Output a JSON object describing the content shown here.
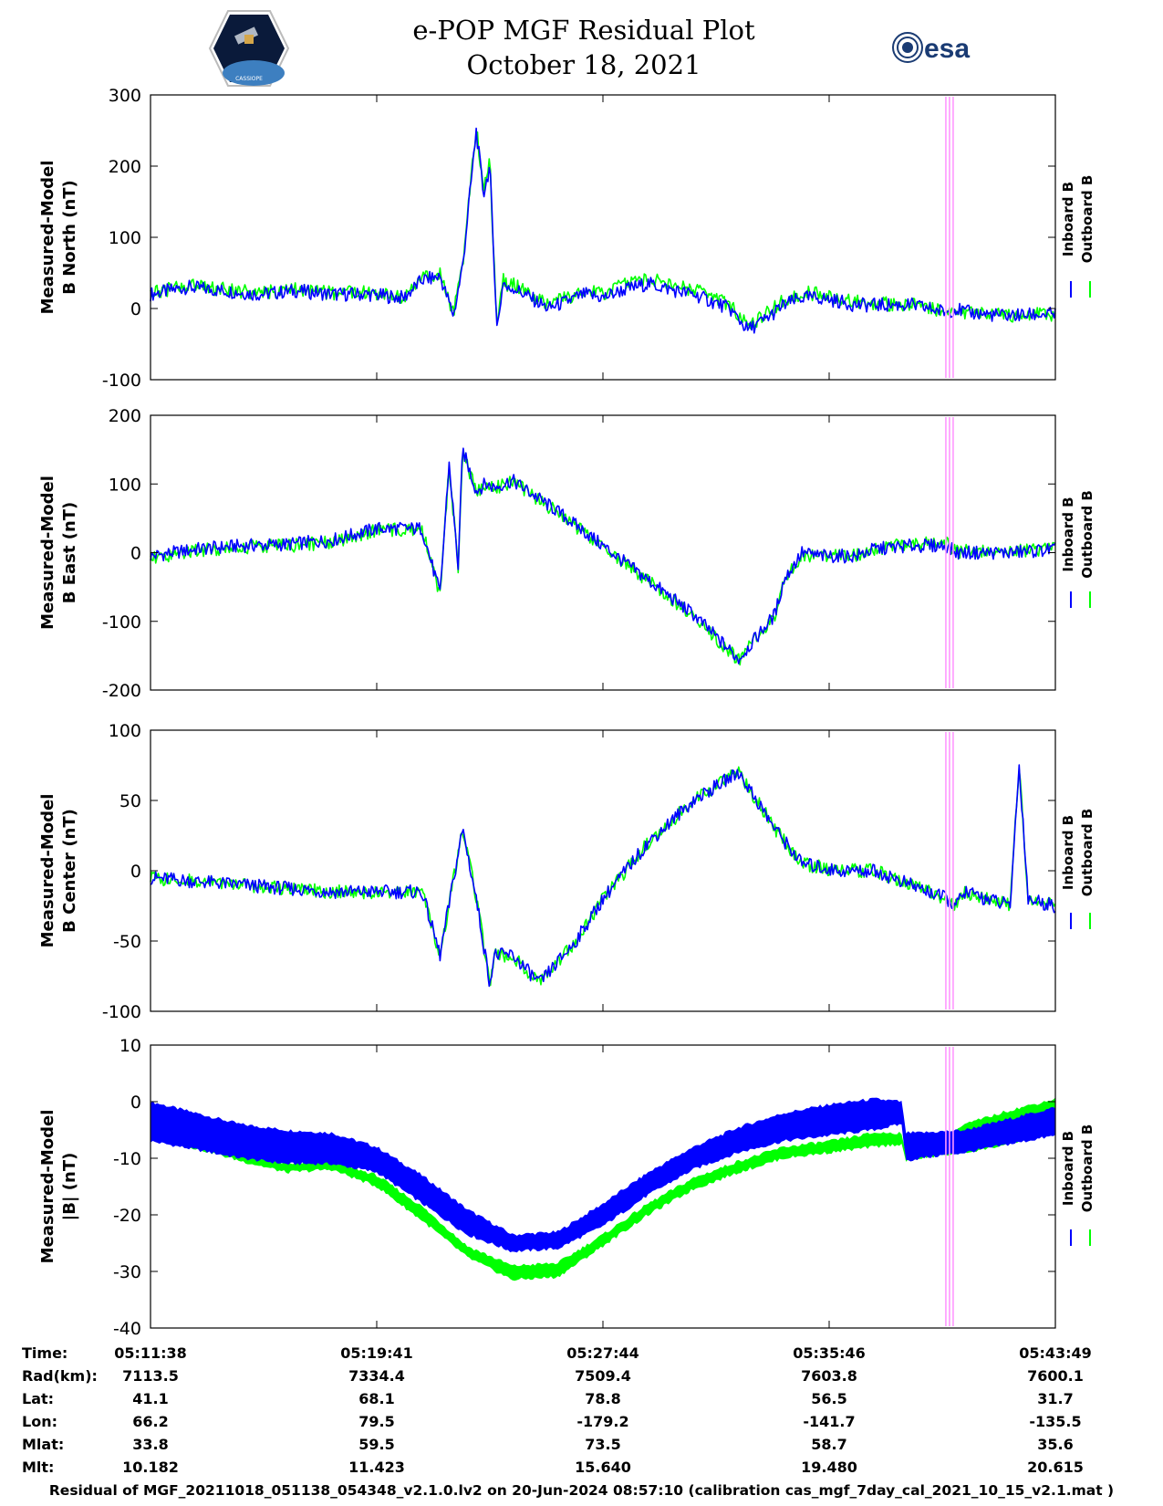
{
  "header": {
    "title_line1": "e-POP MGF Residual Plot",
    "title_line2": "October 18, 2021",
    "logo_left_text": "CASSIOPE",
    "logo_right_text": "esa"
  },
  "colors": {
    "inboard": "#0000ff",
    "outboard": "#00ff00",
    "marker": "#ff99ff"
  },
  "chart_data": [
    {
      "type": "line",
      "ylabel_line1": "Measured-Model",
      "ylabel_line2": "B North (nT)",
      "ylim": [
        -100,
        300
      ],
      "yticks": [
        -100,
        0,
        100,
        200,
        300
      ],
      "legend": [
        "Inboard B",
        "Outboard B"
      ],
      "x": [
        0,
        0.04,
        0.08,
        0.12,
        0.16,
        0.2,
        0.24,
        0.28,
        0.3,
        0.32,
        0.335,
        0.345,
        0.36,
        0.368,
        0.375,
        0.383,
        0.39,
        0.395,
        0.4,
        0.42,
        0.44,
        0.48,
        0.5,
        0.52,
        0.55,
        0.58,
        0.6,
        0.64,
        0.66,
        0.68,
        0.7,
        0.72,
        0.74,
        0.78,
        0.8,
        0.84,
        0.88,
        0.89,
        0.9,
        0.94,
        1.0
      ],
      "series": [
        {
          "name": "Inboard B",
          "values": [
            20,
            30,
            25,
            20,
            25,
            20,
            20,
            15,
            40,
            45,
            -10,
            60,
            250,
            160,
            200,
            -30,
            40,
            25,
            30,
            15,
            0,
            20,
            15,
            25,
            35,
            25,
            20,
            0,
            -30,
            -15,
            5,
            15,
            15,
            5,
            5,
            5,
            -5,
            0,
            -5,
            -10,
            -8
          ]
        },
        {
          "name": "Outboard B",
          "values": [
            22,
            32,
            27,
            22,
            27,
            22,
            22,
            17,
            43,
            48,
            -8,
            63,
            255,
            165,
            205,
            -27,
            44,
            30,
            35,
            20,
            5,
            25,
            20,
            32,
            42,
            32,
            27,
            5,
            -25,
            -8,
            12,
            22,
            20,
            10,
            7,
            5,
            -4,
            0,
            -5,
            -10,
            -8
          ]
        }
      ]
    },
    {
      "type": "line",
      "ylabel_line1": "Measured-Model",
      "ylabel_line2": "B East (nT)",
      "ylim": [
        -200,
        200
      ],
      "yticks": [
        -200,
        -100,
        0,
        100,
        200
      ],
      "legend": [
        "Inboard B",
        "Outboard B"
      ],
      "x": [
        0,
        0.05,
        0.1,
        0.15,
        0.2,
        0.25,
        0.3,
        0.32,
        0.33,
        0.34,
        0.345,
        0.36,
        0.37,
        0.38,
        0.4,
        0.45,
        0.47,
        0.5,
        0.55,
        0.6,
        0.65,
        0.69,
        0.7,
        0.72,
        0.74,
        0.78,
        0.8,
        0.84,
        0.88,
        0.89,
        0.9,
        0.95,
        1.0
      ],
      "series": [
        {
          "name": "Inboard B",
          "values": [
            -5,
            5,
            10,
            12,
            18,
            35,
            35,
            -60,
            130,
            -20,
            150,
            90,
            100,
            95,
            105,
            60,
            40,
            10,
            -40,
            -90,
            -155,
            -90,
            -40,
            0,
            -5,
            -5,
            5,
            10,
            10,
            0,
            0,
            0,
            5
          ]
        },
        {
          "name": "Outboard B",
          "values": [
            -8,
            3,
            8,
            10,
            15,
            33,
            33,
            -62,
            128,
            -22,
            148,
            88,
            98,
            93,
            103,
            58,
            38,
            8,
            -42,
            -92,
            -157,
            -92,
            -42,
            -2,
            -6,
            -4,
            6,
            12,
            14,
            2,
            2,
            2,
            7
          ]
        }
      ]
    },
    {
      "type": "line",
      "ylabel_line1": "Measured-Model",
      "ylabel_line2": "B Center (nT)",
      "ylim": [
        -100,
        100
      ],
      "yticks": [
        -100,
        -50,
        0,
        50
      ],
      "extra_tick_label": "100",
      "legend": [
        "Inboard B",
        "Outboard B"
      ],
      "x": [
        0,
        0.1,
        0.2,
        0.25,
        0.3,
        0.32,
        0.345,
        0.36,
        0.375,
        0.38,
        0.4,
        0.43,
        0.47,
        0.5,
        0.55,
        0.6,
        0.65,
        0.69,
        0.72,
        0.76,
        0.8,
        0.84,
        0.88,
        0.89,
        0.9,
        0.95,
        0.96,
        0.97,
        1.0
      ],
      "series": [
        {
          "name": "Inboard B",
          "values": [
            -5,
            -10,
            -15,
            -15,
            -15,
            -60,
            30,
            -20,
            -80,
            -60,
            -60,
            -80,
            -50,
            -20,
            20,
            50,
            70,
            30,
            5,
            0,
            0,
            -10,
            -20,
            -25,
            -15,
            -25,
            75,
            -20,
            -25
          ]
        },
        {
          "name": "Outboard B",
          "values": [
            -5,
            -10,
            -15,
            -15,
            -15,
            -60,
            30,
            -20,
            -80,
            -60,
            -60,
            -80,
            -50,
            -20,
            20,
            50,
            70,
            30,
            5,
            0,
            0,
            -10,
            -20,
            -25,
            -15,
            -25,
            75,
            -20,
            -25
          ]
        }
      ]
    },
    {
      "type": "area",
      "ylabel_line1": "Measured-Model",
      "ylabel_line2": "|B| (nT)",
      "ylim": [
        -40,
        10
      ],
      "yticks": [
        -40,
        -30,
        -20,
        -10,
        0,
        10
      ],
      "legend": [
        "Inboard B",
        "Outboard B"
      ],
      "x": [
        0,
        0.1,
        0.15,
        0.2,
        0.25,
        0.3,
        0.35,
        0.4,
        0.45,
        0.5,
        0.55,
        0.6,
        0.65,
        0.7,
        0.75,
        0.8,
        0.83,
        0.835,
        0.85,
        0.9,
        0.95,
        1.0
      ],
      "series": [
        {
          "name": "Inboard B upper",
          "values": [
            0,
            -4,
            -5,
            -5.5,
            -8,
            -13,
            -19,
            -23.5,
            -23,
            -18,
            -12.5,
            -8,
            -4.5,
            -2,
            -0.5,
            0.5,
            0,
            -5.5,
            -5.5,
            -5,
            -3,
            -1
          ]
        },
        {
          "name": "Inboard B lower",
          "values": [
            -7,
            -10,
            -11,
            -11,
            -12.5,
            -18,
            -23.5,
            -26.5,
            -26,
            -22,
            -16.5,
            -12,
            -9,
            -7,
            -6,
            -5,
            -4,
            -10.5,
            -10,
            -9,
            -7.5,
            -6
          ]
        },
        {
          "name": "Outboard B upper",
          "values": [
            -4,
            -9,
            -11,
            -10.5,
            -13,
            -18.5,
            -25.5,
            -29,
            -28.5,
            -23.5,
            -18,
            -13.5,
            -10.5,
            -8,
            -7,
            -5.5,
            -5.5,
            -10,
            -9,
            -4,
            -1.5,
            0.5
          ]
        },
        {
          "name": "Outboard B lower",
          "values": [
            -6,
            -10.5,
            -12.5,
            -12,
            -15,
            -21,
            -27.5,
            -31.5,
            -31,
            -25.5,
            -20,
            -15.5,
            -12.5,
            -10,
            -9,
            -8,
            -7.5,
            -10.5,
            -10,
            -9,
            -7.5,
            -5
          ]
        }
      ]
    }
  ],
  "info_table": {
    "row_labels": [
      "Time:",
      "Rad(km):",
      "Lat:",
      "Lon:",
      "Mlat:",
      "Mlt:"
    ],
    "columns": [
      [
        "05:11:38",
        "7113.5",
        "41.1",
        "66.2",
        "33.8",
        "10.182"
      ],
      [
        "05:19:41",
        "7334.4",
        "68.1",
        "79.5",
        "59.5",
        "11.423"
      ],
      [
        "05:27:44",
        "7509.4",
        "78.8",
        "-179.2",
        "73.5",
        "15.640"
      ],
      [
        "05:35:46",
        "7603.8",
        "56.5",
        "-141.7",
        "58.7",
        "19.480"
      ],
      [
        "05:43:49",
        "7600.1",
        "31.7",
        "-135.5",
        "35.6",
        "20.615"
      ]
    ]
  },
  "footer": "Residual of MGF_20211018_051138_054348_v2.1.0.lv2 on 20-Jun-2024 08:57:10 (calibration cas_mgf_7day_cal_2021_10_15_v2.1.mat )"
}
